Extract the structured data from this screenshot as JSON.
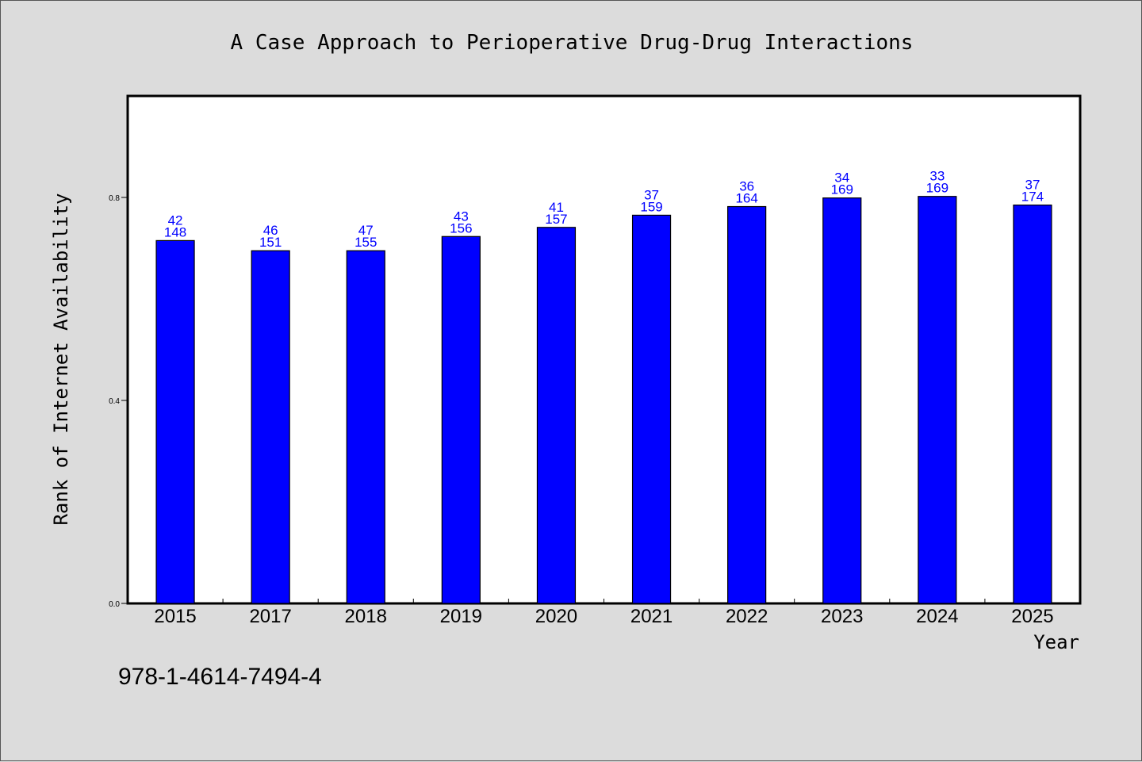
{
  "chart_data": {
    "type": "bar",
    "title": "A Case Approach to Perioperative Drug-Drug Interactions",
    "xlabel": "Year",
    "ylabel": "Rank of Internet Availability",
    "categories": [
      "2015",
      "2017",
      "2018",
      "2019",
      "2020",
      "2021",
      "2022",
      "2023",
      "2024",
      "2025"
    ],
    "values": [
      0.715,
      0.695,
      0.695,
      0.723,
      0.741,
      0.765,
      0.782,
      0.799,
      0.802,
      0.785
    ],
    "labels_top": [
      "42",
      "46",
      "47",
      "43",
      "41",
      "37",
      "36",
      "34",
      "33",
      "37"
    ],
    "labels_bottom": [
      "148",
      "151",
      "155",
      "156",
      "157",
      "159",
      "164",
      "169",
      "169",
      "174"
    ],
    "ylim": [
      0,
      1.0
    ],
    "yticks": [
      0.0,
      0.4,
      0.8
    ],
    "ytick_labels": [
      "0.0",
      "0.4",
      "0.8"
    ],
    "bar_color": "#0000ff",
    "label_color": "#0000ff",
    "grid": false
  },
  "footer": {
    "isbn": "978-1-4614-7494-4"
  }
}
